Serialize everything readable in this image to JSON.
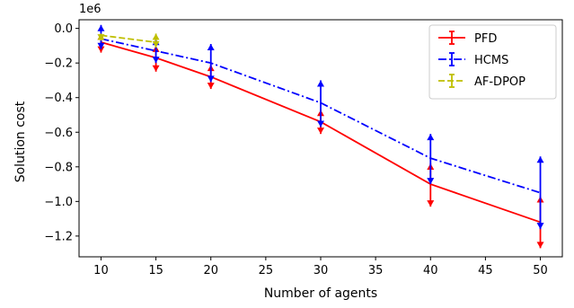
{
  "chart_data": {
    "type": "line",
    "title": "",
    "xlabel": "Number of agents",
    "ylabel": "Solution cost",
    "y_offset_text": "1e6",
    "y_scale": 1000000,
    "xlim": [
      8,
      52
    ],
    "ylim": [
      -1.32,
      0.05
    ],
    "x_ticks": [
      10,
      15,
      20,
      25,
      30,
      35,
      40,
      45,
      50
    ],
    "y_ticks": [
      0.0,
      -0.2,
      -0.4,
      -0.6,
      -0.8,
      -1.0,
      -1.2
    ],
    "y_tick_labels": [
      "0.0",
      "−0.2",
      "−0.4",
      "−0.6",
      "−0.8",
      "−1.0",
      "−1.2"
    ],
    "grid": false,
    "legend_position": "top-right",
    "series": [
      {
        "name": "PFD",
        "color": "#ff0000",
        "linestyle": "solid",
        "x": [
          10,
          15,
          20,
          30,
          40,
          50
        ],
        "y": [
          -0.08,
          -0.17,
          -0.28,
          -0.54,
          -0.9,
          -1.12
        ],
        "err_upper": [
          -0.03,
          -0.1,
          -0.21,
          -0.47,
          -0.78,
          -0.97
        ],
        "err_lower": [
          -0.14,
          -0.25,
          -0.35,
          -0.61,
          -1.03,
          -1.27
        ]
      },
      {
        "name": "HCMS",
        "color": "#0000ff",
        "linestyle": "dashdot",
        "x": [
          10,
          15,
          20,
          30,
          40,
          50
        ],
        "y": [
          -0.06,
          -0.13,
          -0.2,
          -0.43,
          -0.75,
          -0.95
        ],
        "err_upper": [
          0.02,
          -0.06,
          -0.09,
          -0.3,
          -0.61,
          -0.74
        ],
        "err_lower": [
          -0.12,
          -0.2,
          -0.31,
          -0.57,
          -0.9,
          -1.16
        ]
      },
      {
        "name": "AF-DPOP",
        "color": "#bfbf00",
        "linestyle": "dashed",
        "x": [
          10,
          15
        ],
        "y": [
          -0.04,
          -0.08
        ],
        "err_upper": [
          -0.03,
          -0.03
        ],
        "err_lower": [
          -0.07,
          -0.11
        ]
      }
    ]
  }
}
